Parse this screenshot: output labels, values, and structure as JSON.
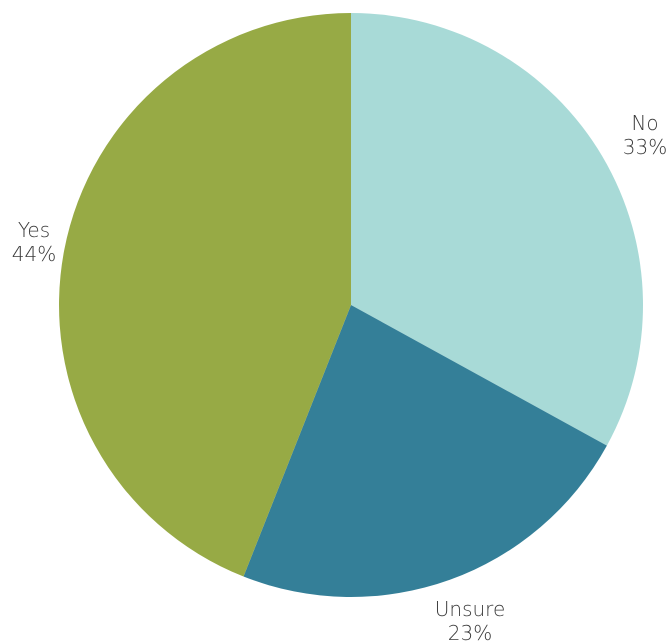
{
  "chart_data": {
    "type": "pie",
    "title": "",
    "start_angle_deg": 0,
    "direction": "clockwise",
    "legend": "none",
    "slices": [
      {
        "label": "No",
        "value": 33,
        "value_label": "33%",
        "color": "#a8dad7"
      },
      {
        "label": "Unsure",
        "value": 23,
        "value_label": "23%",
        "color": "#347f98"
      },
      {
        "label": "Yes",
        "value": 44,
        "value_label": "44%",
        "color": "#97aa45"
      }
    ]
  }
}
